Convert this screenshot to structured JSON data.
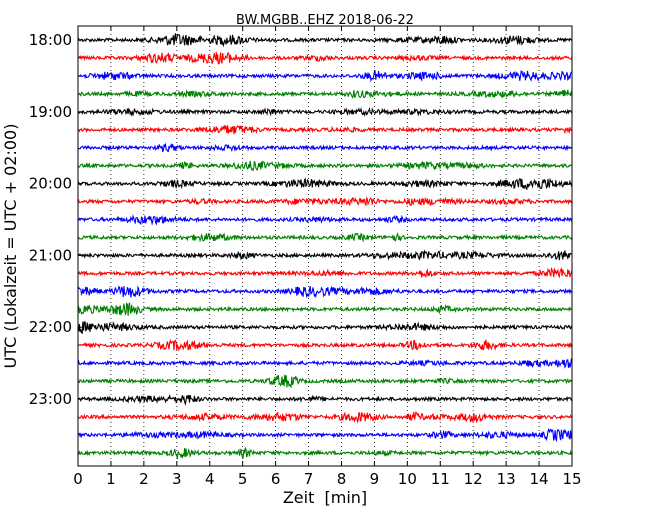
{
  "chart_data": {
    "type": "line",
    "title": "BW.MGBB..EHZ 2018-06-22",
    "xlabel": "Zeit  [min]",
    "ylabel": "UTC (Lokalzeit = UTC + 02:00)",
    "xlim": [
      0,
      15
    ],
    "x_ticks": [
      "0",
      "1",
      "2",
      "3",
      "4",
      "5",
      "6",
      "7",
      "8",
      "9",
      "10",
      "11",
      "12",
      "13",
      "14",
      "15"
    ],
    "y_ticks": [
      "18:00",
      "19:00",
      "20:00",
      "21:00",
      "22:00",
      "23:00"
    ],
    "grid": "vertical dotted",
    "trace_interval_min": 15,
    "trace_colors": [
      "#000000",
      "#ff0000",
      "#0000ff",
      "#008000"
    ],
    "traces": [
      {
        "start": "18:00"
      },
      {
        "start": "18:15"
      },
      {
        "start": "18:30"
      },
      {
        "start": "18:45"
      },
      {
        "start": "19:00"
      },
      {
        "start": "19:15"
      },
      {
        "start": "19:30"
      },
      {
        "start": "19:45"
      },
      {
        "start": "20:00"
      },
      {
        "start": "20:15"
      },
      {
        "start": "20:30"
      },
      {
        "start": "20:45"
      },
      {
        "start": "21:00"
      },
      {
        "start": "21:15"
      },
      {
        "start": "21:30"
      },
      {
        "start": "21:45"
      },
      {
        "start": "22:00"
      },
      {
        "start": "22:15"
      },
      {
        "start": "22:30"
      },
      {
        "start": "22:45"
      },
      {
        "start": "23:00"
      },
      {
        "start": "23:15"
      },
      {
        "start": "23:30"
      },
      {
        "start": "23:45"
      }
    ]
  }
}
